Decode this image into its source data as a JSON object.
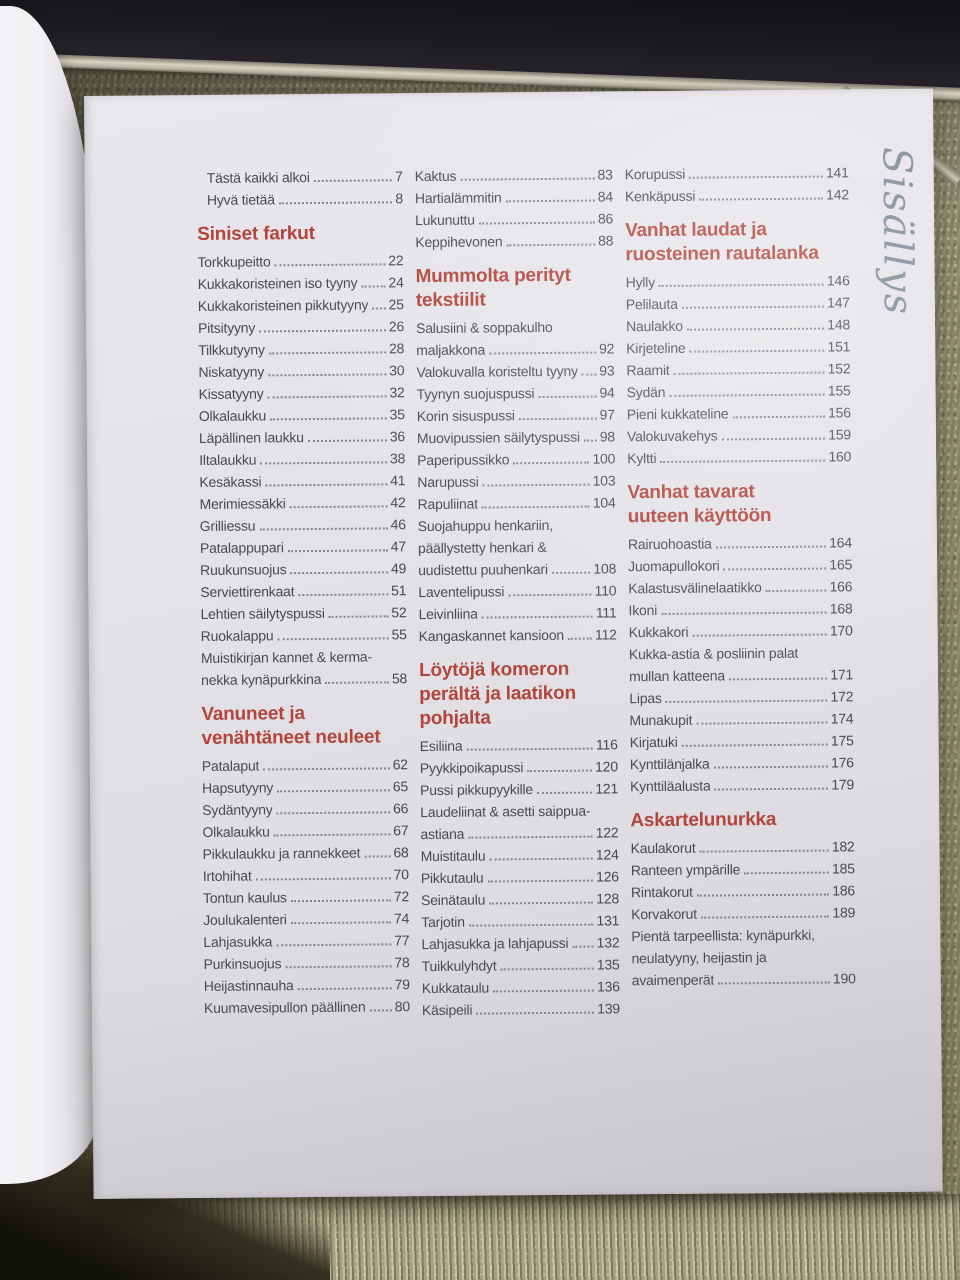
{
  "book": {
    "toc_title": "Sisällys",
    "columns": {
      "col1": [
        {
          "t": "row",
          "label": "Tästä kaikki alkoi",
          "page": "7",
          "indent": true
        },
        {
          "t": "row",
          "label": "Hyvä tietää",
          "page": "8",
          "indent": true
        },
        {
          "t": "head",
          "lines": [
            "Siniset farkut"
          ]
        },
        {
          "t": "row",
          "label": "Torkkupeitto",
          "page": "22"
        },
        {
          "t": "row",
          "label": "Kukkakoristeinen iso tyyny",
          "page": "24"
        },
        {
          "t": "row",
          "label": "Kukkakoristeinen pikkutyyny",
          "page": "25"
        },
        {
          "t": "row",
          "label": "Pitsityyny",
          "page": "26"
        },
        {
          "t": "row",
          "label": "Tilkkutyyny",
          "page": "28"
        },
        {
          "t": "row",
          "label": "Niskatyyny",
          "page": "30"
        },
        {
          "t": "row",
          "label": "Kissatyyny",
          "page": "32"
        },
        {
          "t": "row",
          "label": "Olkalaukku",
          "page": "35"
        },
        {
          "t": "row",
          "label": "Läpällinen laukku",
          "page": "36"
        },
        {
          "t": "row",
          "label": "Iltalaukku",
          "page": "38"
        },
        {
          "t": "row",
          "label": "Kesäkassi",
          "page": "41"
        },
        {
          "t": "row",
          "label": "Merimiessäkki",
          "page": "42"
        },
        {
          "t": "row",
          "label": "Grilliessu",
          "page": "46"
        },
        {
          "t": "row",
          "label": "Patalappupari",
          "page": "47"
        },
        {
          "t": "row",
          "label": "Ruukunsuojus",
          "page": "49"
        },
        {
          "t": "row",
          "label": "Serviettirenkaat",
          "page": "51"
        },
        {
          "t": "row",
          "label": "Lehtien säilytyspussi",
          "page": "52"
        },
        {
          "t": "row",
          "label": "Ruokalappu",
          "page": "55"
        },
        {
          "t": "row",
          "lines": [
            "Muistikirjan kannet & kerma-",
            "nekka kynäpurkkina"
          ],
          "page": "58"
        },
        {
          "t": "head",
          "lines": [
            "Vanuneet ja",
            "venähtäneet neuleet"
          ]
        },
        {
          "t": "row",
          "label": "Patalaput",
          "page": "62"
        },
        {
          "t": "row",
          "label": "Hapsutyyny",
          "page": "65"
        },
        {
          "t": "row",
          "label": "Sydäntyyny",
          "page": "66"
        },
        {
          "t": "row",
          "label": "Olkalaukku",
          "page": "67"
        },
        {
          "t": "row",
          "label": "Pikkulaukku ja rannekkeet",
          "page": "68"
        },
        {
          "t": "row",
          "label": "Irtohihat",
          "page": "70"
        },
        {
          "t": "row",
          "label": "Tontun kaulus",
          "page": "72"
        },
        {
          "t": "row",
          "label": "Joulukalenteri",
          "page": "74"
        },
        {
          "t": "row",
          "label": "Lahjasukka",
          "page": "77"
        },
        {
          "t": "row",
          "label": "Purkinsuojus",
          "page": "78"
        },
        {
          "t": "row",
          "label": "Heijastinnauha",
          "page": "79"
        },
        {
          "t": "row",
          "label": "Kuumavesipullon päällinen",
          "page": "80"
        }
      ],
      "col2": [
        {
          "t": "row",
          "label": "Kaktus",
          "page": "83"
        },
        {
          "t": "row",
          "label": "Hartialämmitin",
          "page": "84"
        },
        {
          "t": "row",
          "label": "Lukunuttu",
          "page": "86"
        },
        {
          "t": "row",
          "label": "Keppihevonen",
          "page": "88"
        },
        {
          "t": "head",
          "lines": [
            "Mummolta perityt",
            "tekstiilit"
          ]
        },
        {
          "t": "row",
          "lines": [
            "Salusiini & soppakulho",
            "maljakkona"
          ],
          "page": "92"
        },
        {
          "t": "row",
          "label": "Valokuvalla koristeltu tyyny",
          "page": "93"
        },
        {
          "t": "row",
          "label": "Tyynyn suojuspussi",
          "page": "94"
        },
        {
          "t": "row",
          "label": "Korin sisuspussi",
          "page": "97"
        },
        {
          "t": "row",
          "label": "Muovipussien säilytyspussi",
          "page": "98"
        },
        {
          "t": "row",
          "label": "Paperipussikko",
          "page": "100"
        },
        {
          "t": "row",
          "label": "Narupussi",
          "page": "103"
        },
        {
          "t": "row",
          "label": "Rapuliinat",
          "page": "104"
        },
        {
          "t": "row",
          "lines": [
            "Suojahuppu henkariin,",
            "päällystetty henkari &",
            "uudistettu puuhenkari"
          ],
          "page": "108"
        },
        {
          "t": "row",
          "label": "Laventelipussi",
          "page": "110"
        },
        {
          "t": "row",
          "label": "Leivinliina",
          "page": "111"
        },
        {
          "t": "row",
          "label": "Kangaskannet kansioon",
          "page": "112"
        },
        {
          "t": "head",
          "lines": [
            "Löytöjä komeron",
            "perältä ja laatikon",
            "pohjalta"
          ]
        },
        {
          "t": "row",
          "label": "Esiliina",
          "page": "116"
        },
        {
          "t": "row",
          "label": "Pyykkipoikapussi",
          "page": "120"
        },
        {
          "t": "row",
          "label": "Pussi pikkupyykille",
          "page": "121"
        },
        {
          "t": "row",
          "lines": [
            "Laudeliinat & asetti saippua-",
            "astiana"
          ],
          "page": "122"
        },
        {
          "t": "row",
          "label": "Muistitaulu",
          "page": "124"
        },
        {
          "t": "row",
          "label": "Pikkutaulu",
          "page": "126"
        },
        {
          "t": "row",
          "label": "Seinätaulu",
          "page": "128"
        },
        {
          "t": "row",
          "label": "Tarjotin",
          "page": "131"
        },
        {
          "t": "row",
          "label": "Lahjasukka ja lahjapussi",
          "page": "132"
        },
        {
          "t": "row",
          "label": "Tuikkulyhdyt",
          "page": "135"
        },
        {
          "t": "row",
          "label": "Kukkataulu",
          "page": "136"
        },
        {
          "t": "row",
          "label": "Käsipeili",
          "page": "139"
        }
      ],
      "col3": [
        {
          "t": "row",
          "label": "Korupussi",
          "page": "141"
        },
        {
          "t": "row",
          "label": "Kenkäpussi",
          "page": "142"
        },
        {
          "t": "head",
          "lines": [
            "Vanhat laudat ja",
            "ruosteinen rautalanka"
          ]
        },
        {
          "t": "row",
          "label": "Hylly",
          "page": "146"
        },
        {
          "t": "row",
          "label": "Pelilauta",
          "page": "147"
        },
        {
          "t": "row",
          "label": "Naulakko",
          "page": "148"
        },
        {
          "t": "row",
          "label": "Kirjeteline",
          "page": "151"
        },
        {
          "t": "row",
          "label": "Raamit",
          "page": "152"
        },
        {
          "t": "row",
          "label": "Sydän",
          "page": "155"
        },
        {
          "t": "row",
          "label": "Pieni kukkateline",
          "page": "156"
        },
        {
          "t": "row",
          "label": "Valokuvakehys",
          "page": "159"
        },
        {
          "t": "row",
          "label": "Kyltti",
          "page": "160"
        },
        {
          "t": "head",
          "lines": [
            "Vanhat tavarat",
            "uuteen käyttöön"
          ]
        },
        {
          "t": "row",
          "label": "Rairuohoastia",
          "page": "164"
        },
        {
          "t": "row",
          "label": "Juomapullokori",
          "page": "165"
        },
        {
          "t": "row",
          "label": "Kalastusvälinelaatikko",
          "page": "166"
        },
        {
          "t": "row",
          "label": "Ikoni",
          "page": "168"
        },
        {
          "t": "row",
          "label": "Kukkakori",
          "page": "170"
        },
        {
          "t": "row",
          "lines": [
            "Kukka-astia & posliinin palat",
            "mullan katteena"
          ],
          "page": "171"
        },
        {
          "t": "row",
          "label": "Lipas",
          "page": "172"
        },
        {
          "t": "row",
          "label": "Munakupit",
          "page": "174"
        },
        {
          "t": "row",
          "label": "Kirjatuki",
          "page": "175"
        },
        {
          "t": "row",
          "label": "Kynttilänjalka",
          "page": "176"
        },
        {
          "t": "row",
          "label": "Kynttiläalusta",
          "page": "179"
        },
        {
          "t": "head",
          "lines": [
            "Askartelunurkka"
          ]
        },
        {
          "t": "row",
          "label": "Kaulakorut",
          "page": "182"
        },
        {
          "t": "row",
          "label": "Ranteen ympärille",
          "page": "185"
        },
        {
          "t": "row",
          "label": "Rintakorut",
          "page": "186"
        },
        {
          "t": "row",
          "label": "Korvakorut",
          "page": "189"
        },
        {
          "t": "row",
          "lines": [
            "Pientä tarpeellista: kynäpurkki,",
            "neulatyyny, heijastin ja",
            "avaimenperät"
          ],
          "page": "190"
        }
      ]
    }
  },
  "colors": {
    "heading_red": "#b2453c",
    "body_text": "#4a4a4e",
    "script_title_blue": "#72808d",
    "fabric_olive": "#8f8c6f",
    "page_white": "#e3e1e6"
  }
}
